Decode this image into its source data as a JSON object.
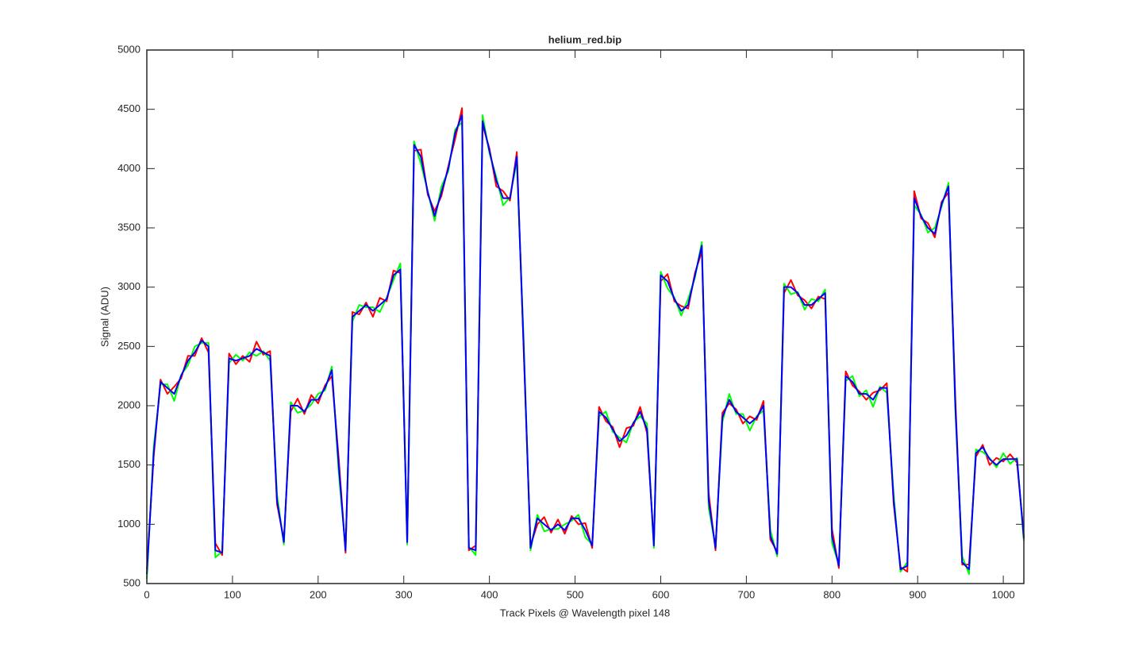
{
  "chart_data": {
    "type": "line",
    "title": "helium_red.bip",
    "x_label": "Track Pixels @ Wavelength pixel 148",
    "y_label": "Signal (ADU)",
    "x": [
      0,
      8,
      16,
      24,
      32,
      40,
      48,
      56,
      64,
      72,
      80,
      88,
      96,
      104,
      112,
      120,
      128,
      136,
      144,
      152,
      160,
      168,
      176,
      184,
      192,
      200,
      208,
      216,
      224,
      232,
      240,
      248,
      256,
      264,
      272,
      280,
      288,
      296,
      304,
      312,
      320,
      328,
      336,
      344,
      352,
      360,
      368,
      376,
      384,
      392,
      400,
      408,
      416,
      424,
      432,
      440,
      448,
      456,
      464,
      472,
      480,
      488,
      496,
      504,
      512,
      520,
      528,
      536,
      544,
      552,
      560,
      568,
      576,
      584,
      592,
      600,
      608,
      616,
      624,
      632,
      640,
      648,
      656,
      664,
      672,
      680,
      688,
      696,
      704,
      712,
      720,
      728,
      736,
      744,
      752,
      760,
      768,
      776,
      784,
      792,
      800,
      808,
      816,
      824,
      832,
      840,
      848,
      856,
      864,
      872,
      880,
      888,
      896,
      904,
      912,
      920,
      928,
      936,
      944,
      952,
      960,
      968,
      976,
      984,
      992,
      1000,
      1008,
      1016,
      1024
    ],
    "series": [
      {
        "color": "#ff0000",
        "values": [
          620,
          1570,
          2220,
          2100,
          2160,
          2230,
          2420,
          2420,
          2570,
          2450,
          840,
          740,
          2440,
          2350,
          2420,
          2370,
          2540,
          2430,
          2460,
          1170,
          870,
          1950,
          2060,
          1930,
          2090,
          2020,
          2170,
          2250,
          1560,
          760,
          2790,
          2770,
          2870,
          2750,
          2910,
          2880,
          3140,
          3120,
          870,
          4150,
          4160,
          3780,
          3640,
          3770,
          4020,
          4250,
          4510,
          780,
          820,
          4370,
          4170,
          3850,
          3810,
          3730,
          4140,
          2470,
          820,
          1000,
          1060,
          930,
          1040,
          920,
          1070,
          1000,
          1010,
          800,
          1990,
          1870,
          1820,
          1650,
          1810,
          1830,
          1990,
          1770,
          840,
          3050,
          3110,
          2880,
          2840,
          2820,
          3120,
          3300,
          1260,
          780,
          1940,
          2020,
          1970,
          1850,
          1910,
          1880,
          2040,
          870,
          770,
          2950,
          3060,
          2930,
          2890,
          2820,
          2920,
          2900,
          960,
          630,
          2290,
          2170,
          2120,
          2050,
          2110,
          2130,
          2190,
          1170,
          640,
          600,
          3810,
          3580,
          3540,
          3420,
          3720,
          3800,
          2060,
          660,
          660,
          1570,
          1670,
          1500,
          1560,
          1530,
          1590,
          1520,
          900
        ]
      },
      {
        "color": "#00ff00",
        "values": [
          540,
          1650,
          2180,
          2180,
          2040,
          2260,
          2340,
          2500,
          2530,
          2530,
          720,
          770,
          2360,
          2430,
          2380,
          2450,
          2420,
          2460,
          2380,
          1250,
          830,
          2030,
          1940,
          1960,
          2010,
          2100,
          2130,
          2330,
          1440,
          790,
          2710,
          2850,
          2830,
          2830,
          2790,
          2910,
          3060,
          3200,
          830,
          4230,
          4040,
          3810,
          3560,
          3850,
          3980,
          4330,
          4390,
          810,
          740,
          4450,
          4130,
          3930,
          3690,
          3760,
          4060,
          2550,
          780,
          1080,
          940,
          960,
          960,
          1000,
          1030,
          1080,
          890,
          830,
          1910,
          1950,
          1780,
          1730,
          1690,
          1860,
          1910,
          1850,
          800,
          3130,
          2990,
          2910,
          2760,
          2900,
          3080,
          3380,
          1140,
          810,
          1860,
          2100,
          1930,
          1930,
          1790,
          1910,
          1960,
          950,
          730,
          3030,
          2940,
          2960,
          2810,
          2900,
          2880,
          2980,
          840,
          660,
          2210,
          2250,
          2080,
          2130,
          1990,
          2160,
          2110,
          1250,
          600,
          680,
          3690,
          3610,
          3460,
          3500,
          3680,
          3880,
          1960,
          730,
          580,
          1630,
          1610,
          1560,
          1480,
          1600,
          1510,
          1560,
          860
        ]
      },
      {
        "color": "#0000ff",
        "values": [
          580,
          1600,
          2200,
          2150,
          2100,
          2250,
          2380,
          2450,
          2550,
          2500,
          780,
          760,
          2400,
          2380,
          2400,
          2420,
          2480,
          2450,
          2420,
          1200,
          850,
          2000,
          2000,
          1950,
          2050,
          2050,
          2150,
          2300,
          1500,
          780,
          2750,
          2800,
          2850,
          2800,
          2850,
          2900,
          3100,
          3150,
          850,
          4200,
          4100,
          3800,
          3600,
          3800,
          4000,
          4300,
          4450,
          800,
          780,
          4400,
          4150,
          3900,
          3750,
          3750,
          4100,
          2500,
          800,
          1050,
          1000,
          950,
          1000,
          950,
          1050,
          1050,
          950,
          820,
          1950,
          1900,
          1800,
          1700,
          1750,
          1850,
          1950,
          1800,
          820,
          3100,
          3050,
          2900,
          2800,
          2850,
          3100,
          3350,
          1200,
          800,
          1900,
          2050,
          1950,
          1900,
          1850,
          1900,
          2000,
          900,
          750,
          3000,
          3000,
          2950,
          2850,
          2850,
          2900,
          2950,
          900,
          650,
          2250,
          2200,
          2100,
          2100,
          2050,
          2150,
          2150,
          1200,
          620,
          650,
          3750,
          3600,
          3500,
          3450,
          3700,
          3850,
          2000,
          680,
          620,
          1600,
          1650,
          1550,
          1500,
          1550,
          1550,
          1550,
          880
        ]
      }
    ],
    "xlim": [
      0,
      1024
    ],
    "xticks": [
      0,
      100,
      200,
      300,
      400,
      500,
      600,
      700,
      800,
      900,
      1000
    ],
    "ylim": [
      500,
      5000
    ],
    "yticks": [
      500,
      1000,
      1500,
      2000,
      2500,
      3000,
      3500,
      4000,
      4500,
      5000
    ],
    "grid": false
  }
}
